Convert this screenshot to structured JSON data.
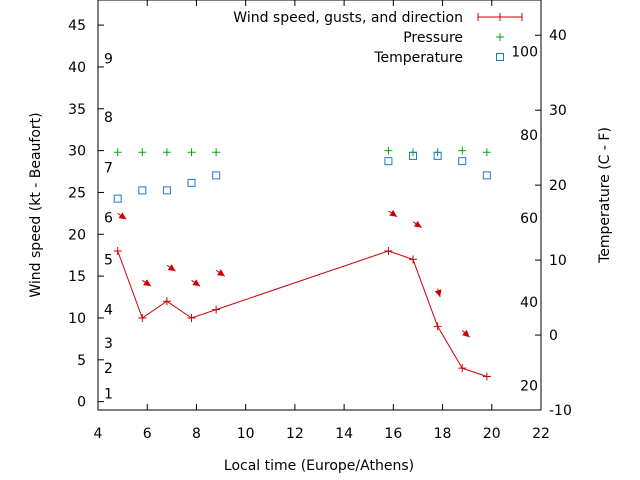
{
  "chart_data": {
    "type": "line",
    "xlabel": "Local time (Europe/Athens)",
    "ylabel": "Wind speed (kt - Beaufort)",
    "y2label": "Temperature (C - F)",
    "xlim": [
      4,
      22
    ],
    "ylim": [
      -1,
      48
    ],
    "y2lim": [
      -10,
      44.7
    ],
    "x_ticks": [
      4,
      6,
      8,
      10,
      12,
      14,
      16,
      18,
      20,
      22
    ],
    "y_ticks": [
      0,
      5,
      10,
      15,
      20,
      25,
      30,
      35,
      40,
      45
    ],
    "y2_ticks": [
      -10,
      0,
      10,
      20,
      30,
      40
    ],
    "beaufort_labels": [
      {
        "label": "1",
        "y": 1
      },
      {
        "label": "2",
        "y": 4
      },
      {
        "label": "3",
        "y": 7
      },
      {
        "label": "4",
        "y": 11
      },
      {
        "label": "5",
        "y": 17
      },
      {
        "label": "6",
        "y": 22
      },
      {
        "label": "7",
        "y": 28
      },
      {
        "label": "8",
        "y": 34
      },
      {
        "label": "9",
        "y": 41
      }
    ],
    "fahrenheit_labels": [
      {
        "label": "20",
        "c": -6.7
      },
      {
        "label": "40",
        "c": 4.4
      },
      {
        "label": "60",
        "c": 15.6
      },
      {
        "label": "80",
        "c": 26.7
      },
      {
        "label": "100",
        "c": 37.8
      }
    ],
    "legend_position": "top-right",
    "series": [
      {
        "name": "Wind speed, gusts, and direction",
        "color": "#cc0000",
        "style": "line-plus",
        "x": [
          4.8,
          5.8,
          6.8,
          7.8,
          8.8,
          15.8,
          16.8,
          17.8,
          18.8,
          19.8
        ],
        "y": [
          18,
          10,
          12,
          10,
          11,
          18,
          17,
          9,
          4,
          3
        ]
      },
      {
        "name": "Pressure",
        "color": "#00aa00",
        "style": "plus",
        "x": [
          4.8,
          5.8,
          6.8,
          7.8,
          8.8,
          15.8,
          16.8,
          17.8,
          18.8,
          19.8
        ],
        "y": [
          29.8,
          29.8,
          29.8,
          29.8,
          29.8,
          30.0,
          29.8,
          29.8,
          30.0,
          29.8
        ]
      },
      {
        "name": "Temperature",
        "color": "#1f77d0",
        "style": "square",
        "axis": "y2",
        "x": [
          4.8,
          5.8,
          6.8,
          7.8,
          8.8,
          15.8,
          16.8,
          17.8,
          18.8,
          19.8
        ],
        "y": [
          18.2,
          19.3,
          19.3,
          20.3,
          21.3,
          23.2,
          23.9,
          23.9,
          23.2,
          21.3
        ]
      }
    ],
    "direction_arrows": [
      {
        "x": 4.8,
        "y": 22.5,
        "dx": 0.35,
        "dy": -0.7
      },
      {
        "x": 5.8,
        "y": 14.5,
        "dx": 0.35,
        "dy": -0.7
      },
      {
        "x": 6.8,
        "y": 16.3,
        "dx": 0.35,
        "dy": -0.7
      },
      {
        "x": 7.8,
        "y": 14.5,
        "dx": 0.35,
        "dy": -0.7
      },
      {
        "x": 8.8,
        "y": 15.7,
        "dx": 0.35,
        "dy": -0.7
      },
      {
        "x": 15.8,
        "y": 22.8,
        "dx": 0.35,
        "dy": -0.7
      },
      {
        "x": 16.8,
        "y": 21.5,
        "dx": 0.35,
        "dy": -0.7
      },
      {
        "x": 17.8,
        "y": 13.5,
        "dx": 0.1,
        "dy": -1.0
      },
      {
        "x": 18.8,
        "y": 8.5,
        "dx": 0.3,
        "dy": -0.8
      }
    ]
  }
}
